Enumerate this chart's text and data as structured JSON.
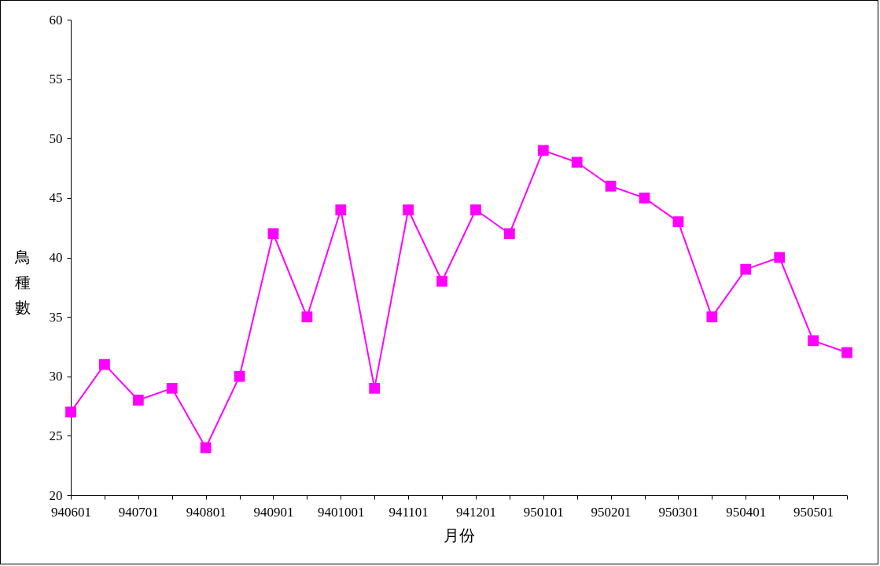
{
  "chart_data": {
    "type": "line",
    "xlabel": "月份",
    "ylabel": "鳥種數",
    "categories": [
      "940601",
      null,
      "940701",
      null,
      "940801",
      null,
      "940901",
      null,
      "9401001",
      null,
      "941101",
      null,
      "941201",
      null,
      "950101",
      null,
      "950201",
      null,
      "950301",
      null,
      "950401",
      null,
      "950501",
      null
    ],
    "series": [
      {
        "color": "#ff00ff",
        "values": [
          27,
          31,
          28,
          29,
          24,
          30,
          42,
          35,
          44,
          29,
          44,
          38,
          44,
          42,
          49,
          48,
          46,
          45,
          43,
          35,
          39,
          40,
          33,
          32
        ]
      }
    ],
    "ylim": [
      20,
      60
    ],
    "yticks": [
      20,
      25,
      30,
      35,
      40,
      45,
      50,
      55,
      60
    ],
    "grid": false,
    "legend": false,
    "marker": "square",
    "line_style": "solid"
  }
}
